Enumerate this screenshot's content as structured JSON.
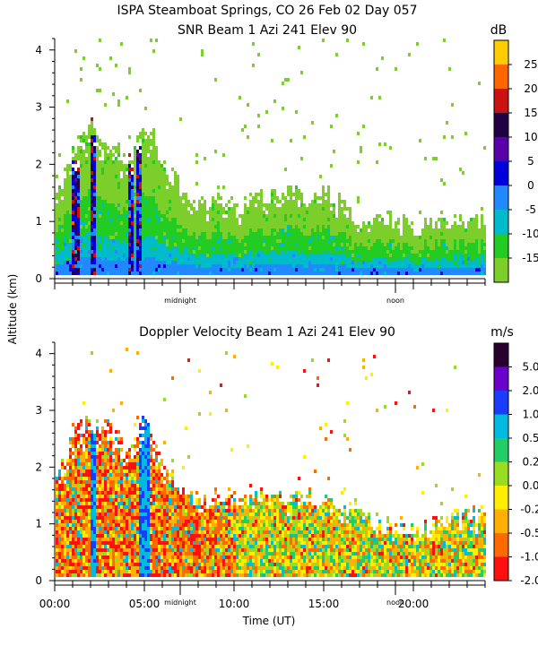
{
  "header": {
    "title_line1": "ISPA Steamboat Springs, CO   26 Feb 02 Day 057",
    "ylabel": "Altitude (km)",
    "xlabel": "Time (UT)"
  },
  "chart_data": [
    {
      "type": "heatmap",
      "title": "SNR Beam 1 Azi 241 Elev 90",
      "variable": "SNR",
      "units": "dB",
      "xlabel": "",
      "xlim_hours": [
        0,
        24
      ],
      "ylim_km": [
        0,
        4.2
      ],
      "yticks": [
        0,
        1,
        2,
        3,
        4
      ],
      "xticks_hours": [
        0,
        1,
        2,
        3,
        4,
        5,
        6,
        7,
        8,
        9,
        10,
        11,
        12,
        13,
        14,
        15,
        16,
        17,
        18,
        19,
        20,
        21,
        22,
        23,
        24
      ],
      "day_markers": [
        {
          "label": "midnight",
          "hour": 7.0
        },
        {
          "label": "noon",
          "hour": 19.0
        }
      ],
      "colorbar": {
        "labels": [
          "25",
          "20",
          "15",
          "10",
          "5",
          "0",
          "-5",
          "-10",
          "-15"
        ],
        "bins": [
          {
            "color": "#7ccf2a"
          },
          {
            "color": "#22cc22"
          },
          {
            "color": "#00bbcc"
          },
          {
            "color": "#2288ff"
          },
          {
            "color": "#0000dd"
          },
          {
            "color": "#5a00aa"
          },
          {
            "color": "#220044"
          },
          {
            "color": "#cc1111"
          },
          {
            "color": "#ff6600"
          },
          {
            "color": "#ffcc00"
          }
        ]
      },
      "profile": [
        {
          "hour": 0.0,
          "top": 1.6
        },
        {
          "hour": 1.0,
          "top": 2.2
        },
        {
          "hour": 2.0,
          "top": 2.8
        },
        {
          "hour": 3.0,
          "top": 2.3
        },
        {
          "hour": 4.0,
          "top": 2.2
        },
        {
          "hour": 5.0,
          "top": 2.8
        },
        {
          "hour": 6.0,
          "top": 2.1
        },
        {
          "hour": 7.0,
          "top": 1.6
        },
        {
          "hour": 8.0,
          "top": 1.3
        },
        {
          "hour": 9.0,
          "top": 1.5
        },
        {
          "hour": 10.0,
          "top": 1.2
        },
        {
          "hour": 11.0,
          "top": 1.6
        },
        {
          "hour": 12.0,
          "top": 1.5
        },
        {
          "hour": 13.0,
          "top": 1.6
        },
        {
          "hour": 14.0,
          "top": 1.4
        },
        {
          "hour": 15.0,
          "top": 1.5
        },
        {
          "hour": 16.0,
          "top": 1.3
        },
        {
          "hour": 17.0,
          "top": 1.0
        },
        {
          "hour": 18.0,
          "top": 1.2
        },
        {
          "hour": 19.0,
          "top": 1.0
        },
        {
          "hour": 20.0,
          "top": 0.9
        },
        {
          "hour": 21.0,
          "top": 1.1
        },
        {
          "hour": 22.0,
          "top": 1.0
        },
        {
          "hour": 23.0,
          "top": 1.1
        },
        {
          "hour": 24.0,
          "top": 1.0
        }
      ],
      "strong_columns_hours": [
        1.1,
        2.1,
        4.2,
        4.6
      ]
    },
    {
      "type": "heatmap",
      "title": "Doppler Velocity Beam 1 Azi 241 Elev 90",
      "variable": "Doppler Velocity",
      "units": "m/s",
      "xlabel": "Time (UT)",
      "xlim_hours": [
        0,
        24
      ],
      "ylim_km": [
        0,
        4.2
      ],
      "yticks": [
        0,
        1,
        2,
        3,
        4
      ],
      "xticks_hours": [
        0,
        1,
        2,
        3,
        4,
        5,
        6,
        7,
        8,
        9,
        10,
        11,
        12,
        13,
        14,
        15,
        16,
        17,
        18,
        19,
        20,
        21,
        22,
        23,
        24
      ],
      "xtick_labels": [
        {
          "label": "00:00",
          "hour": 0
        },
        {
          "label": "05:00",
          "hour": 5
        },
        {
          "label": "10:00",
          "hour": 10
        },
        {
          "label": "15:00",
          "hour": 15
        },
        {
          "label": "20:00",
          "hour": 20
        }
      ],
      "day_markers": [
        {
          "label": "midnight",
          "hour": 7.0
        },
        {
          "label": "noon",
          "hour": 19.0
        }
      ],
      "colorbar": {
        "labels": [
          "5.0",
          "2.0",
          "1.0",
          "0.5",
          "0.2",
          "0.0",
          "-0.2",
          "-0.5",
          "-1.0",
          "-2.0"
        ],
        "bins": [
          {
            "color": "#ff1010"
          },
          {
            "color": "#ff6a00"
          },
          {
            "color": "#ffb000"
          },
          {
            "color": "#ffee00"
          },
          {
            "color": "#99dd22"
          },
          {
            "color": "#22cc66"
          },
          {
            "color": "#00bbdd"
          },
          {
            "color": "#1a3cff"
          },
          {
            "color": "#6a00cc"
          },
          {
            "color": "#2a0030"
          }
        ]
      },
      "profile": [
        {
          "hour": 0.0,
          "top": 1.8
        },
        {
          "hour": 1.0,
          "top": 2.6
        },
        {
          "hour": 2.0,
          "top": 2.9
        },
        {
          "hour": 3.0,
          "top": 2.7
        },
        {
          "hour": 4.0,
          "top": 2.3
        },
        {
          "hour": 5.0,
          "top": 3.0
        },
        {
          "hour": 6.0,
          "top": 2.2
        },
        {
          "hour": 7.0,
          "top": 1.7
        },
        {
          "hour": 8.0,
          "top": 1.4
        },
        {
          "hour": 9.0,
          "top": 1.6
        },
        {
          "hour": 10.0,
          "top": 1.5
        },
        {
          "hour": 11.0,
          "top": 1.6
        },
        {
          "hour": 12.0,
          "top": 1.5
        },
        {
          "hour": 13.0,
          "top": 1.5
        },
        {
          "hour": 14.0,
          "top": 1.5
        },
        {
          "hour": 15.0,
          "top": 1.5
        },
        {
          "hour": 16.0,
          "top": 1.3
        },
        {
          "hour": 17.0,
          "top": 1.4
        },
        {
          "hour": 18.0,
          "top": 1.0
        },
        {
          "hour": 19.0,
          "top": 1.0
        },
        {
          "hour": 20.0,
          "top": 0.9
        },
        {
          "hour": 21.0,
          "top": 1.0
        },
        {
          "hour": 22.0,
          "top": 1.2
        },
        {
          "hour": 23.0,
          "top": 1.2
        },
        {
          "hour": 24.0,
          "top": 1.2
        }
      ],
      "strong_columns_hours": [
        2.1,
        4.8,
        5.1
      ]
    }
  ]
}
